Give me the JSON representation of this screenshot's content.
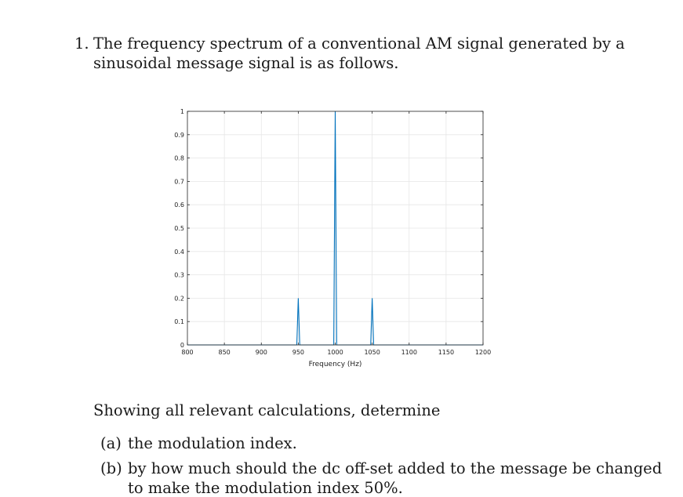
{
  "question": {
    "number": "1.",
    "line1": "The frequency spectrum of a conventional AM signal generated by a",
    "line2": "sinusoidal message signal is as follows."
  },
  "chart_data": {
    "type": "line",
    "xlabel": "Frequency (Hz)",
    "ylabel": "",
    "xlim": [
      800,
      1200
    ],
    "ylim": [
      0,
      1
    ],
    "xticks": [
      800,
      850,
      900,
      950,
      1000,
      1050,
      1100,
      1150,
      1200
    ],
    "yticks": [
      0,
      0.1,
      0.2,
      0.3,
      0.4,
      0.5,
      0.6,
      0.7,
      0.8,
      0.9,
      1
    ],
    "grid": true,
    "color": "#0072BD",
    "x": [
      800,
      948,
      950,
      952,
      998,
      1000,
      1002,
      1048,
      1050,
      1052,
      1200
    ],
    "y": [
      0,
      0,
      0.2,
      0,
      0,
      1,
      0,
      0,
      0.2,
      0,
      0
    ]
  },
  "instructions": {
    "intro": "Showing all relevant calculations, determine",
    "items": [
      {
        "label": "(a)",
        "text": "the modulation index."
      },
      {
        "label": "(b)",
        "text": "by how much should the dc off-set added to the message be changed",
        "text2": "to make the modulation index 50%."
      }
    ]
  }
}
